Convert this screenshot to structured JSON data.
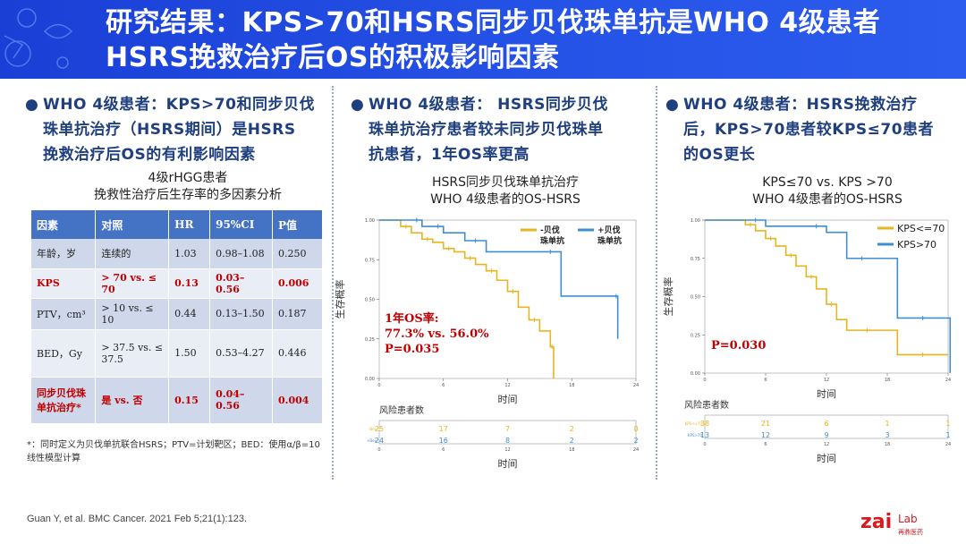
{
  "header": {
    "title_line1": "研究结果：KPS>70和HSRS同步贝伐珠单抗是WHO 4级患者",
    "title_line2": "HSRS挽救治疗后OS的积极影响因素"
  },
  "left_panel": {
    "bullet": "WHO 4级患者：KPS>70和同步贝伐珠单抗治疗（HSRS期间）是HSRS挽救治疗后OS的有利影响因素",
    "bullet_lines": [
      "WHO 4级患者：KPS>70和同步贝伐",
      "珠单抗治疗（HSRS期间）是HSRS",
      "挽救治疗后OS的有利影响因素"
    ],
    "table_title_line1": "4级rHGG患者",
    "table_title_line2": "挽救性治疗后生存率的多因素分析",
    "table_headers": [
      "因素",
      "对照",
      "HR",
      "95%CI",
      "P值"
    ],
    "table_rows": [
      {
        "factor": "年龄，岁",
        "comparison": "连续的",
        "hr": "1.03",
        "ci": "0.98–1.08",
        "p": "0.250"
      },
      {
        "factor": "KPS",
        "comparison": "> 70 vs. ≤ 70",
        "hr": "0.13",
        "ci": "0.03–0.56",
        "p": "0.006"
      },
      {
        "factor": "PTV，cm³",
        "comparison": "> 10 vs. ≤ 10",
        "hr": "0.44",
        "ci": "0.13–1.50",
        "p": "0.187"
      },
      {
        "factor": "BED，Gy",
        "comparison": "> 37.5 vs. ≤ 37.5",
        "hr": "1.50",
        "ci": "0.53–4.27",
        "p": "0.446"
      },
      {
        "factor": "同步贝伐珠单抗治疗*",
        "comparison": "是 vs. 否",
        "hr": "0.15",
        "ci": "0.04–0.56",
        "p": "0.004"
      }
    ],
    "footnote": "*：同时定义为贝伐单抗联合HSRS；PTV=计划靶区；BED：使用α/β=10线性模型计算",
    "citation": "Guan Y, et al. BMC Cancer. 2021 Feb 5;21(1):123."
  },
  "middle_panel": {
    "bullet_lines": [
      "WHO 4级患者： HSRS同步贝伐",
      "珠单抗治疗患者较未同步贝伐珠单",
      "抗患者，1年OS率更高"
    ],
    "chart_title_line1": "HSRS同步贝伐珠单抗治疗",
    "chart_title_line2": "WHO 4级患者的OS-HSRS"
  },
  "right_panel": {
    "bullet_lines": [
      "WHO 4级患者：HSRS挽救治疗",
      "后，KPS>70患者较KPS≤70患者",
      "的OS更长"
    ],
    "chart_title_line1": "KPS≤70  vs. KPS >70",
    "chart_title_line2": "WHO 4级患者的OS-HSRS"
  },
  "colors": {
    "header_blue": "#2350e3",
    "gold": "#e6b520",
    "steelblue": "#3f8fd0",
    "red": "#c00000",
    "navy": "#1f3f7f"
  },
  "chart_data": [
    {
      "type": "line",
      "title": "HSRS同步贝伐珠单抗治疗 WHO 4级患者的OS-HSRS",
      "xlabel": "时间",
      "ylabel": "生存概率",
      "xlim": [
        0,
        24
      ],
      "ylim": [
        0,
        1
      ],
      "x_ticks": [
        "0",
        "6",
        "12",
        "18",
        "24"
      ],
      "y_ticks": [
        "0.00",
        "0.25",
        "0.50",
        "0.75",
        "1.00"
      ],
      "legend": "top-right",
      "series": [
        {
          "name": "-贝伐珠单抗",
          "color": "#e6b520",
          "x": [
            0,
            2,
            3,
            4,
            5,
            6,
            7,
            8,
            9,
            10,
            11,
            12,
            13,
            14,
            15,
            16,
            16.3
          ],
          "y": [
            1.0,
            0.96,
            0.92,
            0.88,
            0.86,
            0.82,
            0.8,
            0.76,
            0.72,
            0.68,
            0.62,
            0.55,
            0.45,
            0.37,
            0.3,
            0.2,
            0.0
          ]
        },
        {
          "name": "+贝伐珠单抗",
          "color": "#3f8fd0",
          "x": [
            0,
            3,
            4,
            5,
            6,
            8,
            10,
            15,
            17,
            22,
            22.3
          ],
          "y": [
            1.0,
            1.0,
            0.96,
            0.96,
            0.92,
            0.87,
            0.8,
            0.8,
            0.52,
            0.52,
            0.25
          ]
        }
      ],
      "annotation_lines": [
        "1年OS率:",
        "77.3% vs. 56.0%",
        "P=0.035"
      ],
      "risk_table": {
        "label": "风险患者数",
        "row_labels": [
          "-Bev",
          "+Bev"
        ],
        "rows": [
          [
            "25",
            "17",
            "7",
            "2",
            "0"
          ],
          [
            "24",
            "16",
            "8",
            "2",
            "2"
          ]
        ]
      }
    },
    {
      "type": "line",
      "title": "KPS≤70 vs. KPS >70 WHO 4级患者的OS-HSRS",
      "xlabel": "时间",
      "ylabel": "生存概率",
      "xlim": [
        0,
        24
      ],
      "ylim": [
        0,
        1
      ],
      "x_ticks": [
        "0",
        "6",
        "12",
        "18",
        "24"
      ],
      "y_ticks": [
        "0.00",
        "0.25",
        "0.50",
        "0.75",
        "1.00"
      ],
      "legend": "top-right",
      "series": [
        {
          "name": "KPS<=70",
          "color": "#e6b520",
          "x": [
            0,
            4,
            5,
            6,
            7,
            8,
            9,
            10,
            11,
            12,
            13,
            14,
            18,
            19,
            24
          ],
          "y": [
            1.0,
            0.97,
            0.93,
            0.88,
            0.83,
            0.77,
            0.7,
            0.63,
            0.55,
            0.45,
            0.35,
            0.28,
            0.28,
            0.12,
            0.12
          ]
        },
        {
          "name": "KPS>70",
          "color": "#3f8fd0",
          "x": [
            0,
            4,
            6,
            10,
            12,
            14,
            17,
            19,
            24,
            24.2
          ],
          "y": [
            1.0,
            1.0,
            0.96,
            0.96,
            0.92,
            0.75,
            0.75,
            0.36,
            0.36,
            0.0
          ]
        }
      ],
      "annotation_lines": [
        "P=0.030"
      ],
      "risk_table": {
        "label": "风险患者数",
        "row_labels": [
          "KPS<=70",
          "KPS>70"
        ],
        "rows": [
          [
            "38",
            "21",
            "6",
            "1",
            "1"
          ],
          [
            "13",
            "12",
            "9",
            "3",
            "1"
          ]
        ]
      }
    }
  ]
}
